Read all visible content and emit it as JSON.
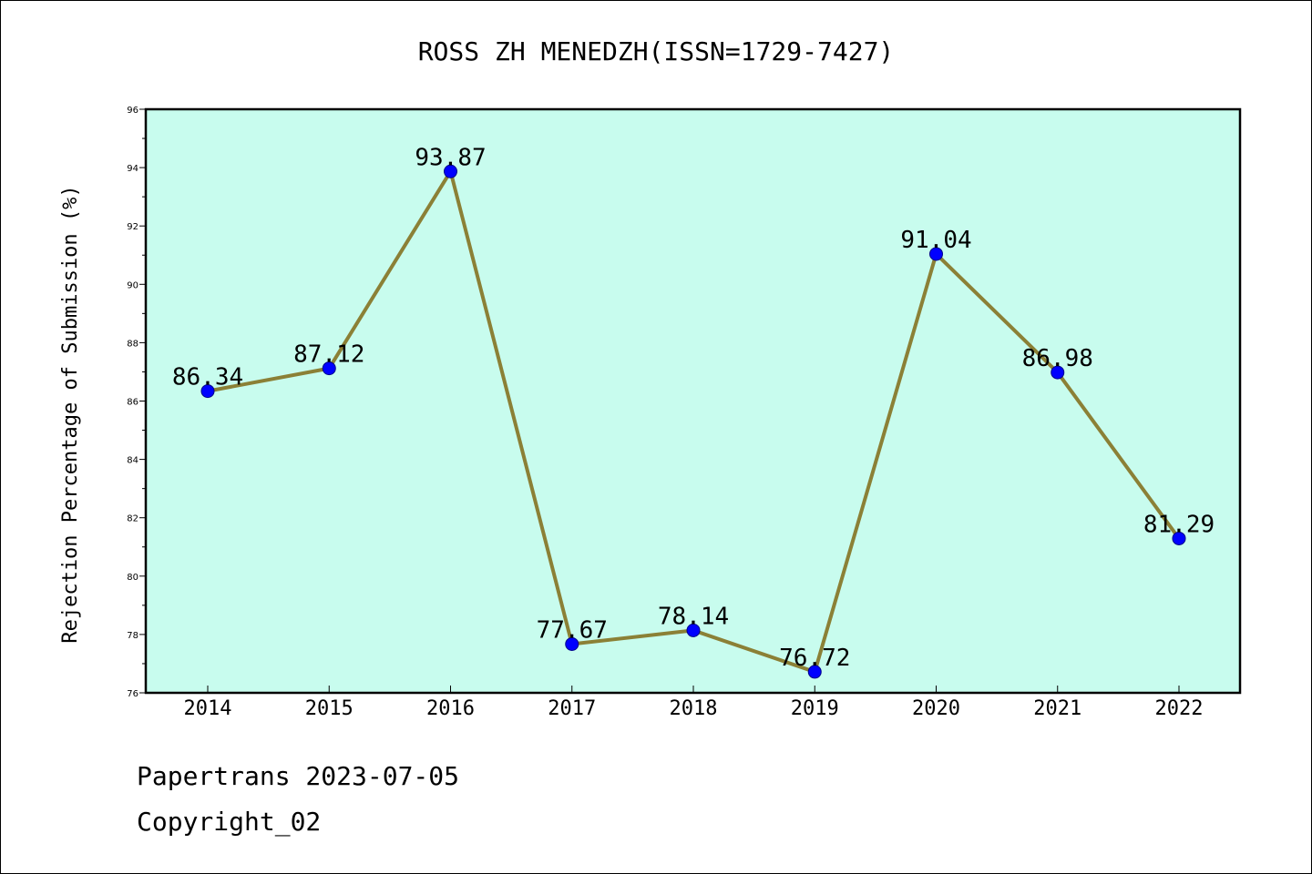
{
  "chart_data": {
    "type": "line",
    "title": "ROSS ZH MENEDZH(ISSN=1729-7427)",
    "xlabel": "",
    "ylabel": "Rejection Percentage of Submission (%)",
    "categories": [
      "2014",
      "2015",
      "2016",
      "2017",
      "2018",
      "2019",
      "2020",
      "2021",
      "2022"
    ],
    "series": [
      {
        "values": [
          86.34,
          87.12,
          93.87,
          77.67,
          78.14,
          76.72,
          91.04,
          86.98,
          81.29
        ],
        "data_labels": [
          "86.34",
          "87.12",
          "93.87",
          "77.67",
          "78.14",
          "76.72",
          "91.04",
          "86.98",
          "81.29"
        ]
      }
    ],
    "ylim": [
      76,
      96
    ],
    "yticks": [
      "76",
      "78",
      "80",
      "82",
      "84",
      "86",
      "88",
      "90",
      "92",
      "94",
      "96"
    ],
    "grid": false,
    "colors": {
      "plot_background": "#c8fcee",
      "line": "#8b8036",
      "marker": "#0000ff"
    }
  },
  "footer": {
    "source": "Papertrans 2023-07-05",
    "copyright": "Copyright_02"
  }
}
